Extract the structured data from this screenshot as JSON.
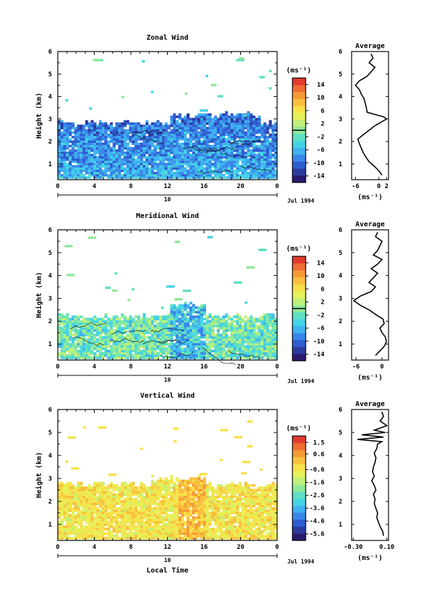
{
  "colors": {
    "scale": [
      "#2a1a6e",
      "#2b3a9e",
      "#2e5ccf",
      "#3a86e8",
      "#3fb2f0",
      "#45d3e6",
      "#5fe0c2",
      "#8eea9a",
      "#bef07a",
      "#e6f05a",
      "#f7e14a",
      "#f8c03e",
      "#f59a36",
      "#ef6d33",
      "#e23a2e"
    ],
    "axis": "#000000",
    "background": "#ffffff"
  },
  "chart_data": [
    {
      "type": "heatmap",
      "title": "Zonal Wind",
      "xlabel": "",
      "ylabel": "Height (km)",
      "xlim": [
        0,
        24
      ],
      "ylim": [
        0.3,
        6
      ],
      "x_ticks": [
        "0",
        "4",
        "8",
        "12",
        "16",
        "20",
        "0"
      ],
      "y_ticks": [
        "1",
        "2",
        "3",
        "4",
        "5",
        "6"
      ],
      "date_axis": {
        "mid_label": "10",
        "right_label": "Jul 1994"
      },
      "colorbar": {
        "unit": "(ms⁻¹)",
        "ticks": [
          "14",
          "10",
          "6",
          "2",
          "-2",
          "-6",
          "-10",
          "-14"
        ],
        "range": [
          -16,
          16
        ],
        "marker": 0
      },
      "data_top_km": 2.9,
      "side_profile": {
        "title": "Average",
        "xlabel": "(ms⁻¹)",
        "x_ticks": [
          "-6",
          "0",
          "2"
        ],
        "xlim": [
          -7,
          2.5
        ],
        "heights": [
          0.5,
          0.7,
          0.9,
          1.1,
          1.3,
          1.5,
          1.7,
          1.9,
          2.1,
          2.3,
          2.5,
          2.7,
          2.9,
          3.0,
          3.1,
          3.2,
          3.3,
          3.5,
          3.7,
          3.9,
          4.1,
          4.3,
          4.5,
          4.7,
          4.9,
          5.1,
          5.3,
          5.5,
          5.7,
          5.9
        ],
        "values": [
          0.8,
          0.0,
          -1.2,
          -2.5,
          -3.3,
          -4.0,
          -4.5,
          -5.0,
          -5.4,
          -4.0,
          -2.5,
          -1.0,
          1.0,
          2.0,
          1.2,
          -1.0,
          -3.0,
          -3.2,
          -3.5,
          -3.8,
          -4.5,
          -5.0,
          -6.0,
          -5.0,
          -3.0,
          -2.0,
          -1.0,
          -2.5,
          -1.5,
          -2.0
        ]
      }
    },
    {
      "type": "heatmap",
      "title": "Meridional Wind",
      "xlabel": "",
      "ylabel": "Height (km)",
      "xlim": [
        0,
        24
      ],
      "ylim": [
        0.3,
        6
      ],
      "x_ticks": [
        "0",
        "4",
        "8",
        "12",
        "16",
        "20",
        "0"
      ],
      "y_ticks": [
        "1",
        "2",
        "3",
        "4",
        "5",
        "6"
      ],
      "date_axis": {
        "mid_label": "10",
        "right_label": "Jul 1994"
      },
      "colorbar": {
        "unit": "(ms⁻¹)",
        "ticks": [
          "14",
          "10",
          "6",
          "2",
          "-2",
          "-6",
          "-10",
          "-14"
        ],
        "range": [
          -16,
          16
        ],
        "marker": 0
      },
      "data_top_km": 2.3,
      "side_profile": {
        "title": "Average",
        "xlabel": "(ms⁻¹)",
        "x_ticks": [
          "-6",
          "0"
        ],
        "xlim": [
          -7,
          1.5
        ],
        "heights": [
          0.5,
          0.7,
          0.9,
          1.1,
          1.3,
          1.5,
          1.7,
          1.9,
          2.1,
          2.3,
          2.5,
          2.7,
          2.9,
          3.1,
          3.3,
          3.5,
          3.7,
          3.9,
          4.1,
          4.3,
          4.5,
          4.7,
          4.9,
          5.1,
          5.3,
          5.5,
          5.7,
          5.9
        ],
        "values": [
          -1.5,
          -0.5,
          0.5,
          1.0,
          0.8,
          0.0,
          -0.5,
          0.5,
          0.2,
          -1.5,
          -3.0,
          -5.0,
          -6.5,
          -5.0,
          -2.5,
          -1.5,
          -3.0,
          -2.0,
          -1.0,
          -2.5,
          -1.0,
          0.0,
          -2.0,
          -1.0,
          -0.5,
          0.0,
          -1.5,
          -1.0
        ]
      }
    },
    {
      "type": "heatmap",
      "title": "Vertical Wind",
      "xlabel": "Local Time",
      "ylabel": "Height (km)",
      "xlim": [
        0,
        24
      ],
      "ylim": [
        0.3,
        6
      ],
      "x_ticks": [
        "0",
        "4",
        "8",
        "12",
        "16",
        "20",
        "0"
      ],
      "y_ticks": [
        "1",
        "2",
        "3",
        "4",
        "5",
        "6"
      ],
      "date_axis": {
        "mid_label": "10",
        "right_label": "Jul 1994"
      },
      "colorbar": {
        "unit": "(ms⁻¹)",
        "ticks": [
          "1.5",
          "0.6",
          "-0.6",
          "-1.6",
          "-2.6",
          "-3.6",
          "-4.6",
          "-5.6"
        ],
        "range": [
          -6.1,
          2.0
        ],
        "marker": null
      },
      "data_top_km": 2.8,
      "side_profile": {
        "title": "Average",
        "xlabel": "(ms⁻¹)",
        "x_ticks": [
          "-0.30",
          "0.10"
        ],
        "xlim": [
          -0.32,
          0.12
        ],
        "heights": [
          0.5,
          0.7,
          0.9,
          1.1,
          1.3,
          1.5,
          1.7,
          1.9,
          2.1,
          2.3,
          2.5,
          2.7,
          2.9,
          3.1,
          3.3,
          3.5,
          3.7,
          3.9,
          4.1,
          4.3,
          4.5,
          4.6,
          4.7,
          4.8,
          4.9,
          5.0,
          5.1,
          5.3,
          5.5,
          5.7,
          5.9
        ],
        "values": [
          0.06,
          0.05,
          0.02,
          0.0,
          -0.02,
          -0.01,
          -0.03,
          -0.05,
          -0.04,
          -0.06,
          -0.03,
          -0.05,
          -0.08,
          -0.05,
          -0.07,
          -0.06,
          -0.04,
          -0.03,
          -0.05,
          -0.02,
          -0.01,
          0.04,
          -0.25,
          0.06,
          -0.2,
          0.08,
          -0.05,
          0.1,
          0.02,
          0.06,
          0.04
        ]
      }
    }
  ]
}
